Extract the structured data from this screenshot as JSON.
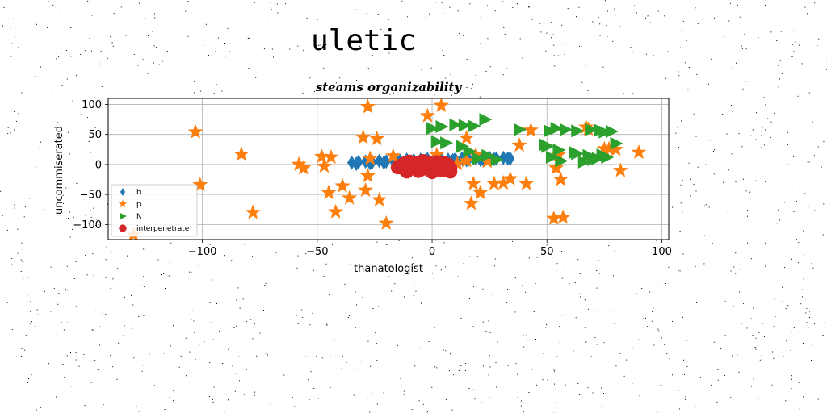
{
  "page": {
    "title": "uletic"
  },
  "chart_data": {
    "type": "scatter",
    "title": "steams organizability",
    "xlabel": "thanatologist",
    "ylabel": "uncommiserated",
    "xlim": [
      -141,
      103
    ],
    "ylim": [
      -125,
      110
    ],
    "x_ticks": [
      -100,
      -50,
      0,
      50,
      100
    ],
    "y_ticks": [
      100,
      50,
      0,
      -50,
      -100
    ],
    "x_tick_labels": [
      "−100",
      "−50",
      "0",
      "50",
      "100"
    ],
    "y_tick_labels": [
      "100",
      "50",
      "0",
      "−50",
      "−100"
    ],
    "grid": true,
    "legend_position": "lower-left",
    "series": [
      {
        "name": "b",
        "marker": "diamond",
        "color": "#1f77b4",
        "x": [
          -35,
          -32,
          -29,
          -26,
          -23,
          -20,
          -17,
          -14,
          -11,
          -8,
          -5,
          -2,
          1,
          4,
          7,
          10,
          13,
          16,
          19,
          22,
          25,
          28,
          31,
          34,
          -33,
          -27,
          -21,
          -15,
          -9,
          -3,
          3,
          9,
          15,
          21,
          27,
          33
        ],
        "y": [
          3,
          4,
          5,
          4,
          6,
          5,
          7,
          6,
          8,
          7,
          8,
          9,
          8,
          9,
          8,
          9,
          10,
          9,
          10,
          9,
          11,
          10,
          11,
          10,
          1,
          2,
          3,
          4,
          5,
          6,
          6,
          7,
          7,
          8,
          9,
          10
        ]
      },
      {
        "name": "p",
        "marker": "star",
        "color": "#ff7f0e",
        "x": [
          -103,
          -101,
          -83,
          -78,
          -58,
          -56,
          -48,
          -47,
          -45,
          -44,
          -42,
          -39,
          -36,
          -30,
          -29,
          -28,
          -28,
          -27,
          -24,
          -23,
          -20,
          -17,
          -2,
          2,
          4,
          6,
          11,
          15,
          15,
          17,
          18,
          19,
          21,
          24,
          27,
          31,
          34,
          38,
          41,
          43,
          54,
          55,
          56,
          57,
          67,
          68,
          75,
          77,
          80,
          82,
          90,
          -130,
          53
        ],
        "y": [
          54,
          -34,
          17,
          -80,
          0,
          -6,
          13,
          -3,
          -47,
          12,
          -79,
          -36,
          -56,
          45,
          -43,
          -19,
          96,
          10,
          43,
          -59,
          -98,
          14,
          81,
          16,
          98,
          -8,
          1,
          6,
          44,
          -65,
          -32,
          16,
          -47,
          5,
          -32,
          -31,
          -24,
          32,
          -32,
          57,
          -6,
          16,
          -25,
          -88,
          62,
          59,
          26,
          26,
          25,
          -10,
          20,
          -117,
          -90
        ]
      },
      {
        "name": "N",
        "marker": "triangle-right",
        "color": "#2ca02c",
        "x": [
          0,
          4,
          10,
          14,
          18,
          23,
          38,
          51,
          54,
          58,
          63,
          69,
          73,
          75,
          78,
          49,
          55,
          63,
          68,
          72,
          76,
          80,
          2,
          6,
          13,
          16,
          20,
          24,
          28,
          50,
          52,
          56,
          62,
          66,
          70,
          74
        ],
        "y": [
          60,
          63,
          66,
          65,
          64,
          75,
          58,
          56,
          60,
          58,
          56,
          58,
          57,
          54,
          55,
          33,
          24,
          18,
          15,
          10,
          12,
          35,
          38,
          36,
          30,
          22,
          10,
          15,
          8,
          30,
          12,
          6,
          20,
          4,
          8,
          16
        ]
      },
      {
        "name": "interpenetrate",
        "marker": "circle",
        "color": "#d62728",
        "x": [
          -15,
          -13,
          -11,
          -10,
          -8,
          -6,
          -5,
          -3,
          -1,
          0,
          1,
          2,
          4,
          5,
          6,
          7,
          8,
          -14,
          -12,
          -9,
          -7,
          -4,
          -2,
          -1,
          1,
          3,
          5,
          7,
          -11,
          -6,
          0,
          4,
          8,
          -10,
          -4,
          2
        ],
        "y": [
          -5,
          -6,
          -8,
          -4,
          -7,
          -3,
          -9,
          -5,
          -10,
          -6,
          -4,
          -8,
          -7,
          -3,
          -9,
          -5,
          -6,
          -2,
          2,
          0,
          3,
          -1,
          4,
          1,
          2,
          -1,
          3,
          0,
          -12,
          -11,
          -13,
          -10,
          -12,
          5,
          6,
          4
        ]
      }
    ]
  }
}
